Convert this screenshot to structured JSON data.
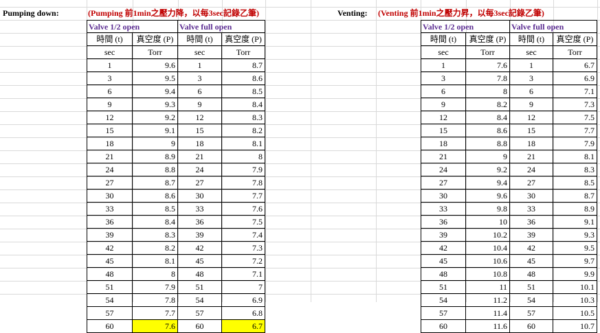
{
  "pumping": {
    "label": "Pumping down:",
    "note": "(Pumping 前1min之壓力降，以每3sec記錄乙筆)",
    "group1": "Valve 1/2 open",
    "group2": "Valve full open",
    "col_time": "時間 (t)",
    "col_vac": "真空度 (P)",
    "unit_time": "sec",
    "unit_vac": "Torr",
    "rows": [
      [
        "1",
        "9.6",
        "1",
        "8.7"
      ],
      [
        "3",
        "9.5",
        "3",
        "8.6"
      ],
      [
        "6",
        "9.4",
        "6",
        "8.5"
      ],
      [
        "9",
        "9.3",
        "9",
        "8.4"
      ],
      [
        "12",
        "9.2",
        "12",
        "8.3"
      ],
      [
        "15",
        "9.1",
        "15",
        "8.2"
      ],
      [
        "18",
        "9",
        "18",
        "8.1"
      ],
      [
        "21",
        "8.9",
        "21",
        "8"
      ],
      [
        "24",
        "8.8",
        "24",
        "7.9"
      ],
      [
        "27",
        "8.7",
        "27",
        "7.8"
      ],
      [
        "30",
        "8.6",
        "30",
        "7.7"
      ],
      [
        "33",
        "8.5",
        "33",
        "7.6"
      ],
      [
        "36",
        "8.4",
        "36",
        "7.5"
      ],
      [
        "39",
        "8.3",
        "39",
        "7.4"
      ],
      [
        "42",
        "8.2",
        "42",
        "7.3"
      ],
      [
        "45",
        "8.1",
        "45",
        "7.2"
      ],
      [
        "48",
        "8",
        "48",
        "7.1"
      ],
      [
        "51",
        "7.9",
        "51",
        "7"
      ],
      [
        "54",
        "7.8",
        "54",
        "6.9"
      ],
      [
        "57",
        "7.7",
        "57",
        "6.8"
      ],
      [
        "60",
        "7.6",
        "60",
        "6.7"
      ]
    ],
    "highlight_color": "#ffff00"
  },
  "venting": {
    "label": "Venting:",
    "note": "(Venting 前1min之壓力昇，以每3sec記錄乙筆)",
    "group1": "Valve 1/2 open",
    "group2": "Valve full open",
    "col_time": "時間 (t)",
    "col_vac": "真空度 (P)",
    "unit_time": "sec",
    "unit_vac": "Torr",
    "rows": [
      [
        "1",
        "7.6",
        "1",
        "6.7"
      ],
      [
        "3",
        "7.8",
        "3",
        "6.9"
      ],
      [
        "6",
        "8",
        "6",
        "7.1"
      ],
      [
        "9",
        "8.2",
        "9",
        "7.3"
      ],
      [
        "12",
        "8.4",
        "12",
        "7.5"
      ],
      [
        "15",
        "8.6",
        "15",
        "7.7"
      ],
      [
        "18",
        "8.8",
        "18",
        "7.9"
      ],
      [
        "21",
        "9",
        "21",
        "8.1"
      ],
      [
        "24",
        "9.2",
        "24",
        "8.3"
      ],
      [
        "27",
        "9.4",
        "27",
        "8.5"
      ],
      [
        "30",
        "9.6",
        "30",
        "8.7"
      ],
      [
        "33",
        "9.8",
        "33",
        "8.9"
      ],
      [
        "36",
        "10",
        "36",
        "9.1"
      ],
      [
        "39",
        "10.2",
        "39",
        "9.3"
      ],
      [
        "42",
        "10.4",
        "42",
        "9.5"
      ],
      [
        "45",
        "10.6",
        "45",
        "9.7"
      ],
      [
        "48",
        "10.8",
        "48",
        "9.9"
      ],
      [
        "51",
        "11",
        "51",
        "10.1"
      ],
      [
        "54",
        "11.2",
        "54",
        "10.3"
      ],
      [
        "57",
        "11.4",
        "57",
        "10.5"
      ],
      [
        "60",
        "11.6",
        "60",
        "10.7"
      ]
    ]
  },
  "colors": {
    "note_red": "#c00000",
    "valve_purple": "#5b2c91",
    "gridline": "#d9d9d9"
  }
}
